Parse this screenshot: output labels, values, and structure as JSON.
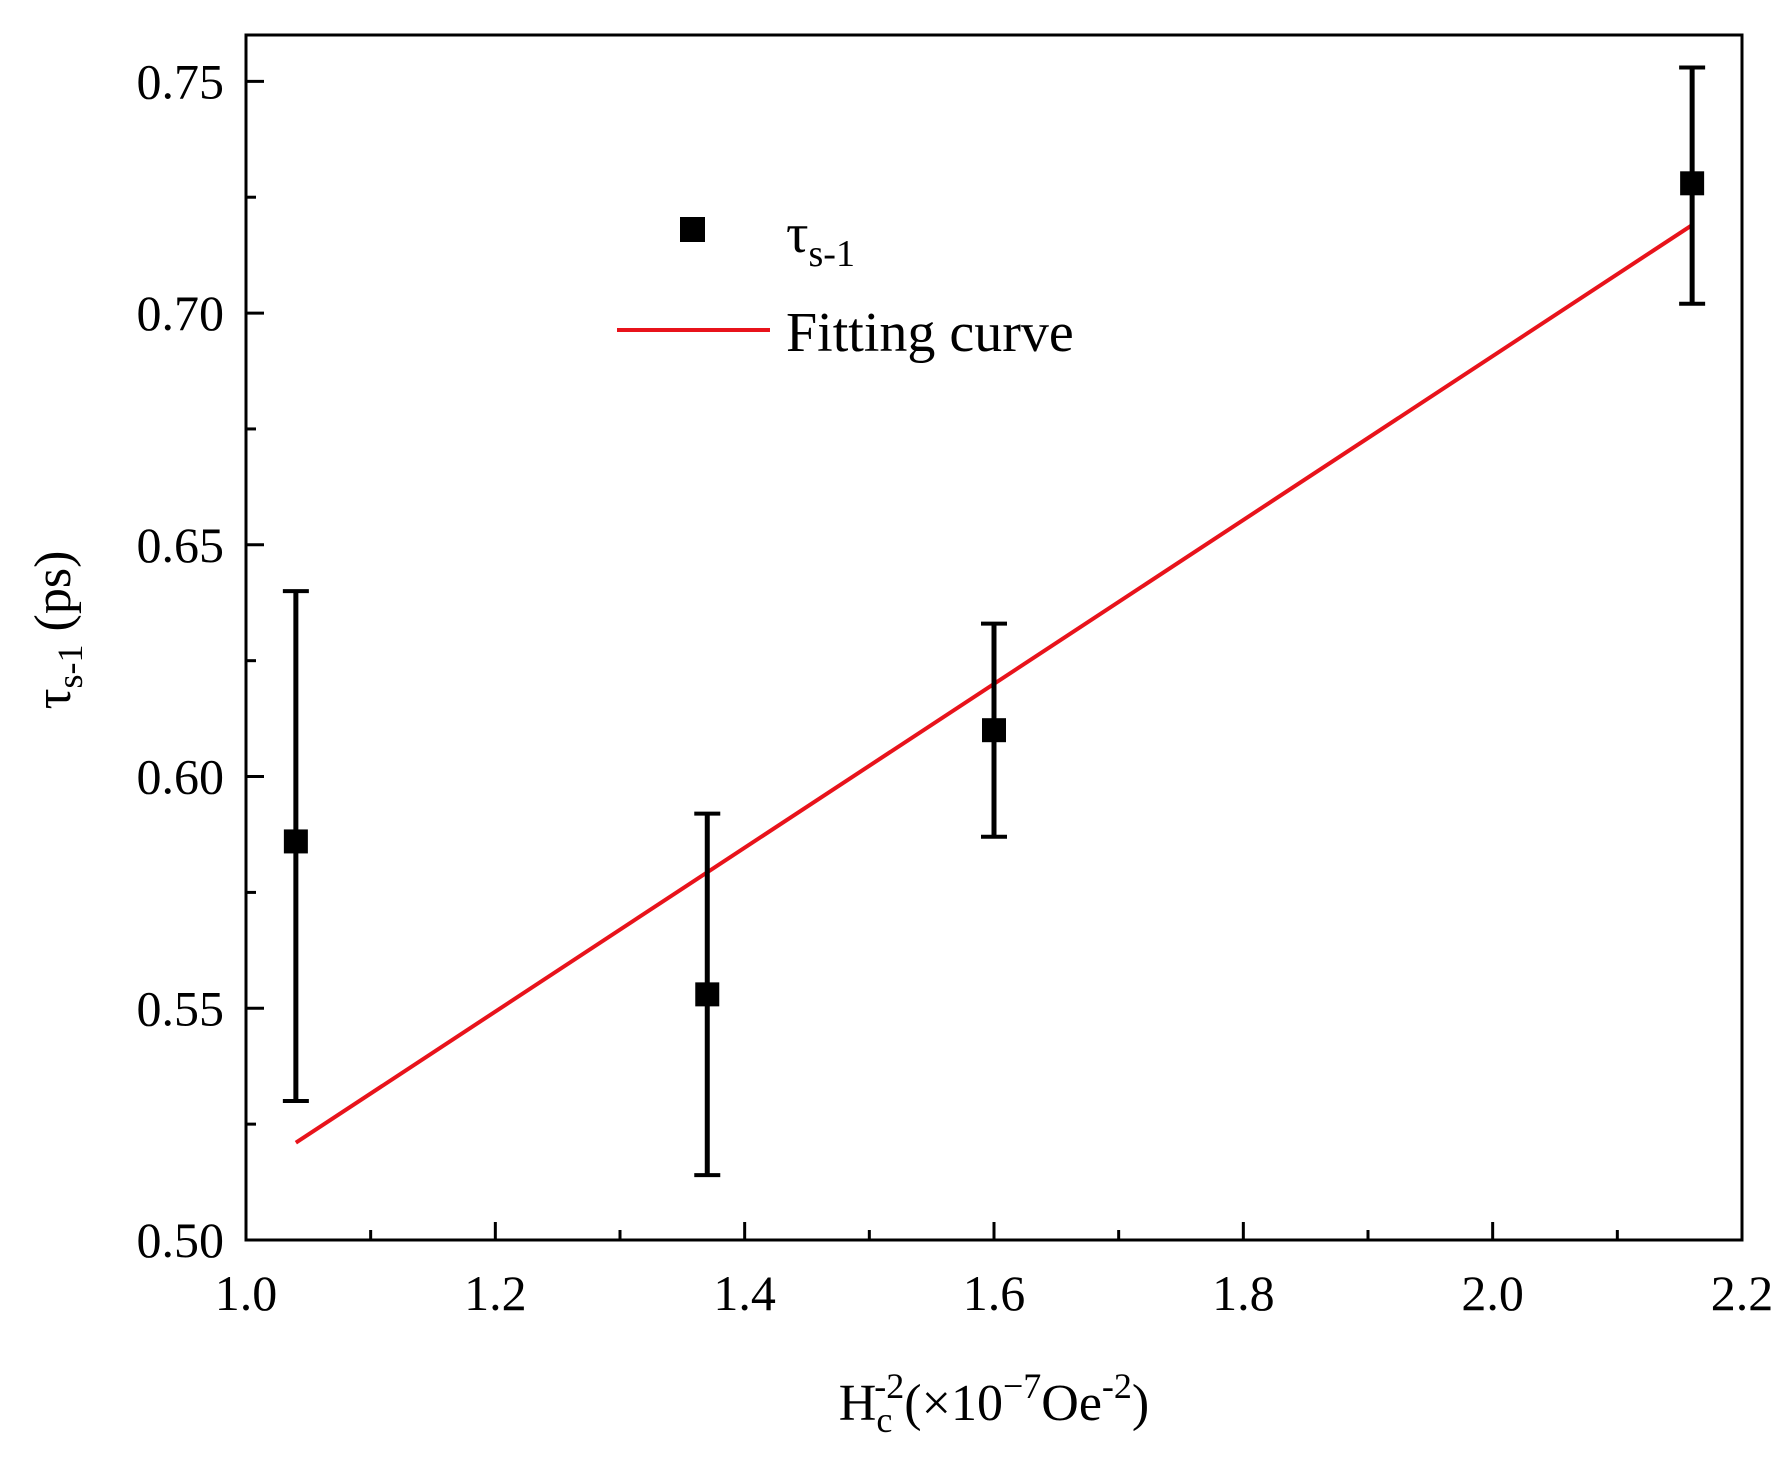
{
  "chart_data": {
    "type": "scatter",
    "title": "",
    "xlabel": {
      "base": "H",
      "sub": "c",
      "sup": "-2",
      "paren_open": "(×10",
      "exp": "−7",
      "unit": "Oe",
      "unit_sup": "-2",
      "paren_close": ")"
    },
    "ylabel": {
      "base": "τ",
      "sub": "s-1",
      "unit": " (ps)"
    },
    "xlim": [
      1.0,
      2.2
    ],
    "ylim": [
      0.5,
      0.76
    ],
    "xticks": [
      1.0,
      1.2,
      1.4,
      1.6,
      1.8,
      2.0,
      2.2
    ],
    "xtick_labels": [
      "1.0",
      "1.2",
      "1.4",
      "1.6",
      "1.8",
      "2.0",
      "2.2"
    ],
    "yticks": [
      0.5,
      0.55,
      0.6,
      0.65,
      0.7,
      0.75
    ],
    "ytick_labels": [
      "0.50",
      "0.55",
      "0.60",
      "0.65",
      "0.70",
      "0.75"
    ],
    "series": [
      {
        "name": "τs-1",
        "legend": {
          "base": "τ",
          "sub": "s-1"
        },
        "kind": "scatter",
        "color": "#000000",
        "x": [
          1.04,
          1.37,
          1.6,
          2.16
        ],
        "y": [
          0.586,
          0.553,
          0.61,
          0.728
        ],
        "err_low": [
          0.53,
          0.514,
          0.587,
          0.702
        ],
        "err_high": [
          0.64,
          0.592,
          0.633,
          0.753
        ]
      },
      {
        "name": "Fitting curve",
        "legend": {
          "base": "Fitting curve"
        },
        "kind": "line",
        "color": "#e8131b",
        "x": [
          1.04,
          2.16
        ],
        "y": [
          0.521,
          0.719
        ]
      }
    ],
    "legend_position": "top-left"
  }
}
